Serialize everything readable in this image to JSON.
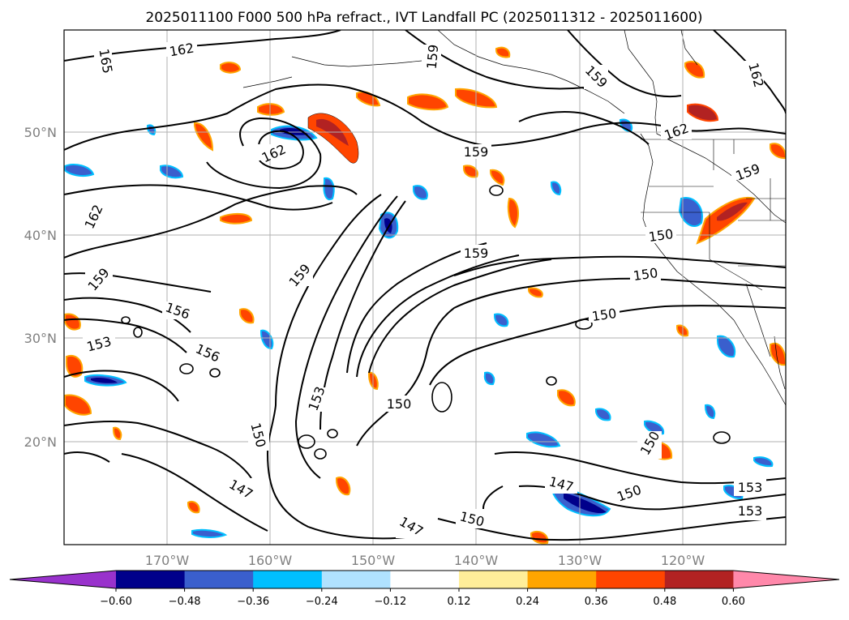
{
  "title": "2025011100 F000 500 hPa refract., IVT Landfall PC (2025011312 - 2025011600)",
  "map": {
    "lon_range": [
      -180,
      -110
    ],
    "lat_range": [
      10,
      60
    ],
    "x_ticks": [
      "170°W",
      "160°W",
      "150°W",
      "140°W",
      "130°W",
      "120°W"
    ],
    "y_ticks": [
      "50°N",
      "40°N",
      "30°N",
      "20°N"
    ],
    "grid": true,
    "contour_labels": [
      "162",
      "165",
      "159",
      "162",
      "159",
      "162",
      "162",
      "159",
      "159",
      "159",
      "150",
      "150",
      "150",
      "159",
      "156",
      "162",
      "159",
      "153",
      "156",
      "153",
      "150",
      "150",
      "147",
      "147",
      "150",
      "150",
      "150",
      "147",
      "153",
      "153"
    ]
  },
  "colorbar": {
    "ticks": [
      "−0.60",
      "−0.48",
      "−0.36",
      "−0.24",
      "−0.12",
      "0.12",
      "0.24",
      "0.36",
      "0.48",
      "0.60"
    ],
    "colors": [
      "#9932cc",
      "#00008b",
      "#3a5fcd",
      "#00bfff",
      "#b0e2ff",
      "#ffffff",
      "#ffee99",
      "#ffa500",
      "#ff4500",
      "#b22222",
      "#ff88aa"
    ]
  }
}
